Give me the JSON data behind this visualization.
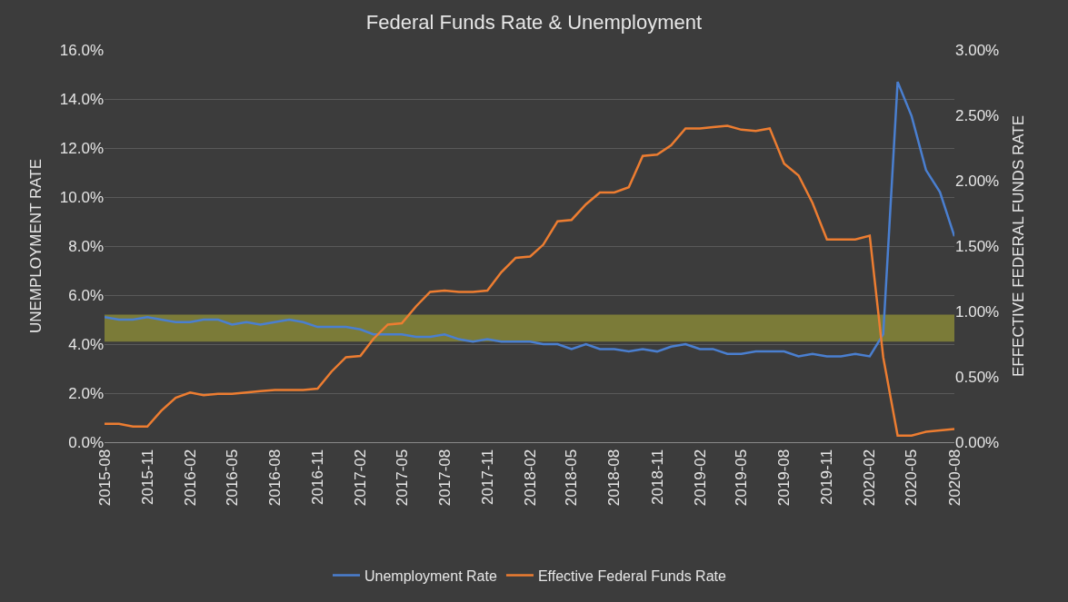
{
  "chart_data": {
    "type": "line",
    "title": "Federal Funds Rate & Unemployment",
    "ylabel": "UNEMPLOYMENT RATE",
    "y2label": "EFFECTIVE FEDERAL FUNDS RATE",
    "x": [
      "2015-08",
      "2015-09",
      "2015-10",
      "2015-11",
      "2015-12",
      "2016-01",
      "2016-02",
      "2016-03",
      "2016-04",
      "2016-05",
      "2016-06",
      "2016-07",
      "2016-08",
      "2016-09",
      "2016-10",
      "2016-11",
      "2016-12",
      "2017-01",
      "2017-02",
      "2017-03",
      "2017-04",
      "2017-05",
      "2017-06",
      "2017-07",
      "2017-08",
      "2017-09",
      "2017-10",
      "2017-11",
      "2017-12",
      "2018-01",
      "2018-02",
      "2018-03",
      "2018-04",
      "2018-05",
      "2018-06",
      "2018-07",
      "2018-08",
      "2018-09",
      "2018-10",
      "2018-11",
      "2018-12",
      "2019-01",
      "2019-02",
      "2019-03",
      "2019-04",
      "2019-05",
      "2019-06",
      "2019-07",
      "2019-08",
      "2019-09",
      "2019-10",
      "2019-11",
      "2019-12",
      "2020-01",
      "2020-02",
      "2020-03",
      "2020-04",
      "2020-05",
      "2020-06",
      "2020-07",
      "2020-08"
    ],
    "series": [
      {
        "name": "Unemployment Rate",
        "color": "#4a7fd0",
        "values": [
          5.1,
          5.0,
          5.0,
          5.1,
          5.0,
          4.9,
          4.9,
          5.0,
          5.0,
          4.8,
          4.9,
          4.8,
          4.9,
          5.0,
          4.9,
          4.7,
          4.7,
          4.7,
          4.6,
          4.4,
          4.4,
          4.4,
          4.3,
          4.3,
          4.4,
          4.2,
          4.1,
          4.2,
          4.1,
          4.1,
          4.1,
          4.0,
          4.0,
          3.8,
          4.0,
          3.8,
          3.8,
          3.7,
          3.8,
          3.7,
          3.9,
          4.0,
          3.8,
          3.8,
          3.6,
          3.6,
          3.7,
          3.7,
          3.7,
          3.5,
          3.6,
          3.5,
          3.5,
          3.6,
          3.5,
          4.4,
          14.7,
          13.3,
          11.1,
          10.2,
          8.4
        ]
      },
      {
        "name": "Effective Federal Funds Rate",
        "color": "#ed7d31",
        "axis": "y2",
        "values": [
          0.14,
          0.14,
          0.12,
          0.12,
          0.24,
          0.34,
          0.38,
          0.36,
          0.37,
          0.37,
          0.38,
          0.39,
          0.4,
          0.4,
          0.4,
          0.41,
          0.54,
          0.65,
          0.66,
          0.79,
          0.9,
          0.91,
          1.04,
          1.15,
          1.16,
          1.15,
          1.15,
          1.16,
          1.3,
          1.41,
          1.42,
          1.51,
          1.69,
          1.7,
          1.82,
          1.91,
          1.91,
          1.95,
          2.19,
          2.2,
          2.27,
          2.4,
          2.4,
          2.41,
          2.42,
          2.39,
          2.38,
          2.4,
          2.13,
          2.04,
          1.83,
          1.55,
          1.55,
          1.55,
          1.58,
          0.65,
          0.05,
          0.05,
          0.08,
          0.09,
          0.1
        ]
      }
    ],
    "xlim": [
      "2015-08",
      "2020-08"
    ],
    "xticks": [
      {
        "value": "2015-08",
        "label": "2015-08"
      },
      {
        "value": "2015-11",
        "label": "2015-11"
      },
      {
        "value": "2016-02",
        "label": "2016-02"
      },
      {
        "value": "2016-05",
        "label": "2016-05"
      },
      {
        "value": "2016-08",
        "label": "2016-08"
      },
      {
        "value": "2016-11",
        "label": "2016-11"
      },
      {
        "value": "2017-02",
        "label": "2017-02"
      },
      {
        "value": "2017-05",
        "label": "2017-05"
      },
      {
        "value": "2017-08",
        "label": "2017-08"
      },
      {
        "value": "2017-11",
        "label": "2017-11"
      },
      {
        "value": "2018-02",
        "label": "2018-02"
      },
      {
        "value": "2018-05",
        "label": "2018-05"
      },
      {
        "value": "2018-08",
        "label": "2018-08"
      },
      {
        "value": "2018-11",
        "label": "2018-11"
      },
      {
        "value": "2019-02",
        "label": "2019-02"
      },
      {
        "value": "2019-05",
        "label": "2019-05"
      },
      {
        "value": "2019-08",
        "label": "2019-08"
      },
      {
        "value": "2019-11",
        "label": "2019-11"
      },
      {
        "value": "2020-02",
        "label": "2020-02"
      },
      {
        "value": "2020-05",
        "label": "2020-05"
      },
      {
        "value": "2020-08",
        "label": "2020-08"
      }
    ],
    "ylim": [
      0,
      16
    ],
    "yticks": [
      {
        "value": 0,
        "label": "0.0%"
      },
      {
        "value": 2,
        "label": "2.0%"
      },
      {
        "value": 4,
        "label": "4.0%"
      },
      {
        "value": 6,
        "label": "6.0%"
      },
      {
        "value": 8,
        "label": "8.0%"
      },
      {
        "value": 10,
        "label": "10.0%"
      },
      {
        "value": 12,
        "label": "12.0%"
      },
      {
        "value": 14,
        "label": "14.0%"
      },
      {
        "value": 16,
        "label": "16.0%"
      }
    ],
    "y2lim": [
      0,
      3
    ],
    "y2ticks": [
      {
        "value": 0,
        "label": "0.00%"
      },
      {
        "value": 0.5,
        "label": "0.50%"
      },
      {
        "value": 1,
        "label": "1.00%"
      },
      {
        "value": 1.5,
        "label": "1.50%"
      },
      {
        "value": 2,
        "label": "2.00%"
      },
      {
        "value": 2.5,
        "label": "2.50%"
      },
      {
        "value": 3,
        "label": "3.00%"
      }
    ],
    "bands": [
      {
        "axis": "y",
        "from": 4.1,
        "to": 5.2,
        "color": "#c8c832"
      }
    ],
    "grid": "y",
    "legend": "bottom",
    "marker": "none",
    "line_style": "solid"
  }
}
